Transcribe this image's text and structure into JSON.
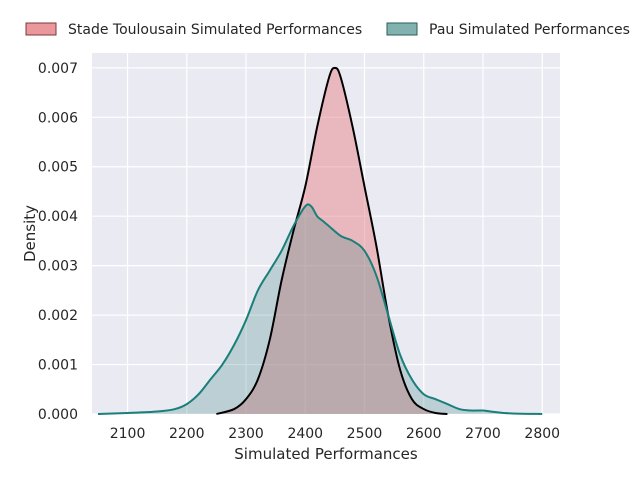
{
  "chart_data": {
    "type": "area",
    "xlabel": "Simulated Performances",
    "ylabel": "Density",
    "xlim": [
      2040,
      2830
    ],
    "ylim": [
      0,
      0.0073
    ],
    "x_ticks": [
      2100,
      2200,
      2300,
      2400,
      2500,
      2600,
      2700,
      2800
    ],
    "x_tick_labels": [
      "2100",
      "2200",
      "2300",
      "2400",
      "2500",
      "2600",
      "2700",
      "2800"
    ],
    "y_ticks": [
      0,
      0.001,
      0.002,
      0.003,
      0.004,
      0.005,
      0.006,
      0.007
    ],
    "y_tick_labels": [
      "0.000",
      "0.001",
      "0.002",
      "0.003",
      "0.004",
      "0.005",
      "0.006",
      "0.007"
    ],
    "grid": true,
    "legend_position": "top",
    "background_color": "#eaeaf2",
    "series": [
      {
        "name": "Stade Toulousain Simulated Performances",
        "fill_color": "#e8868c",
        "line_color": "#000000",
        "x": [
          2250,
          2280,
          2300,
          2320,
          2340,
          2360,
          2380,
          2400,
          2420,
          2440,
          2450,
          2460,
          2480,
          2500,
          2520,
          2540,
          2560,
          2580,
          2600,
          2620,
          2640
        ],
        "y": [
          0.0,
          0.0001,
          0.0003,
          0.0007,
          0.0015,
          0.0027,
          0.0037,
          0.0046,
          0.0058,
          0.0068,
          0.007,
          0.0068,
          0.0058,
          0.0046,
          0.0034,
          0.002,
          0.0009,
          0.0003,
          0.0001,
          2e-05,
          0.0
        ]
      },
      {
        "name": "Pau Simulated Performances",
        "fill_color": "#2f7f7a",
        "line_color": "#1a7f7a",
        "x": [
          2050,
          2100,
          2150,
          2180,
          2200,
          2220,
          2240,
          2260,
          2280,
          2300,
          2320,
          2340,
          2360,
          2380,
          2400,
          2410,
          2420,
          2430,
          2440,
          2460,
          2480,
          2500,
          2520,
          2540,
          2560,
          2580,
          2600,
          2620,
          2640,
          2660,
          2680,
          2700,
          2720,
          2750,
          2800
        ],
        "y": [
          0.0,
          2e-05,
          5e-05,
          0.0001,
          0.0002,
          0.0004,
          0.0007,
          0.001,
          0.0014,
          0.0019,
          0.0025,
          0.0029,
          0.0033,
          0.0038,
          0.0042,
          0.0042,
          0.004,
          0.0039,
          0.0038,
          0.0036,
          0.0035,
          0.0033,
          0.0028,
          0.002,
          0.0012,
          0.0007,
          0.0004,
          0.0003,
          0.0002,
          0.0001,
          7e-05,
          7e-05,
          4e-05,
          1e-05,
          0.0
        ]
      }
    ]
  }
}
